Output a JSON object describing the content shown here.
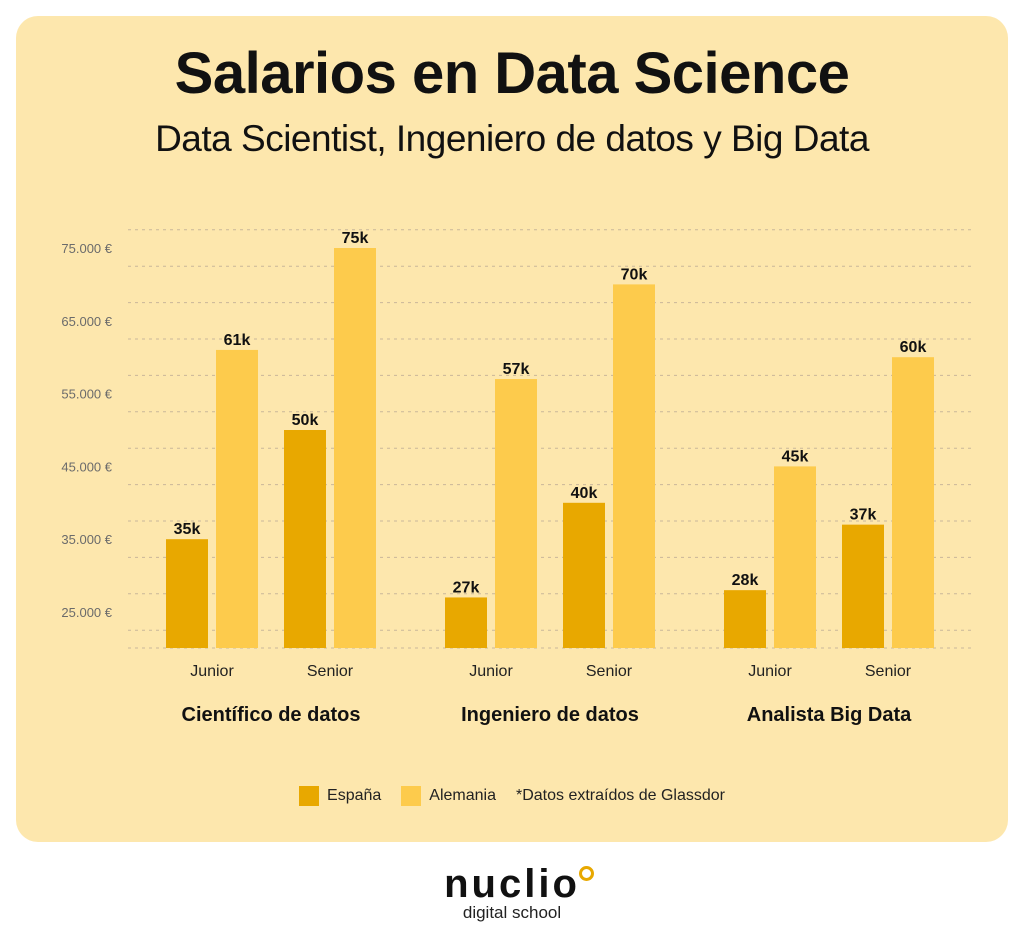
{
  "header": {
    "title": "Salarios en Data Science",
    "subtitle": "Data Scientist, Ingeniero de datos y Big Data"
  },
  "colors": {
    "card_bg": "#fde7ad",
    "espana": "#e8a800",
    "alemania": "#fdcb4c",
    "grid": "#c9b79a"
  },
  "legend": {
    "espana": "España",
    "alemania": "Alemania",
    "note": "*Datos extraídos de Glassdor"
  },
  "logo": {
    "word": "nuclio",
    "tagline": "digital school"
  },
  "chart_data": {
    "type": "bar",
    "ylim": [
      20000,
      77500
    ],
    "yticks": [
      25000,
      35000,
      45000,
      55000,
      65000,
      75000
    ],
    "ytick_labels": [
      "25.000 €",
      "35.000 €",
      "45.000 €",
      "55.000 €",
      "65.000 €",
      "75.000 €"
    ],
    "grid": true,
    "series": [
      {
        "name": "España",
        "color": "#e8a800"
      },
      {
        "name": "Alemania",
        "color": "#fdcb4c"
      }
    ],
    "groups": [
      {
        "name": "Científico de datos",
        "levels": [
          {
            "name": "Junior",
            "values": [
              35000,
              61000
            ],
            "labels": [
              "35k",
              "61k"
            ]
          },
          {
            "name": "Senior",
            "values": [
              50000,
              75000
            ],
            "labels": [
              "50k",
              "75k"
            ]
          }
        ]
      },
      {
        "name": "Ingeniero de datos",
        "levels": [
          {
            "name": "Junior",
            "values": [
              27000,
              57000
            ],
            "labels": [
              "27k",
              "57k"
            ]
          },
          {
            "name": "Senior",
            "values": [
              40000,
              70000
            ],
            "labels": [
              "40k",
              "70k"
            ]
          }
        ]
      },
      {
        "name": "Analista Big Data",
        "levels": [
          {
            "name": "Junior",
            "values": [
              28000,
              45000
            ],
            "labels": [
              "28k",
              "45k"
            ]
          },
          {
            "name": "Senior",
            "values": [
              37000,
              60000
            ],
            "labels": [
              "37k",
              "60k"
            ]
          }
        ]
      }
    ]
  }
}
